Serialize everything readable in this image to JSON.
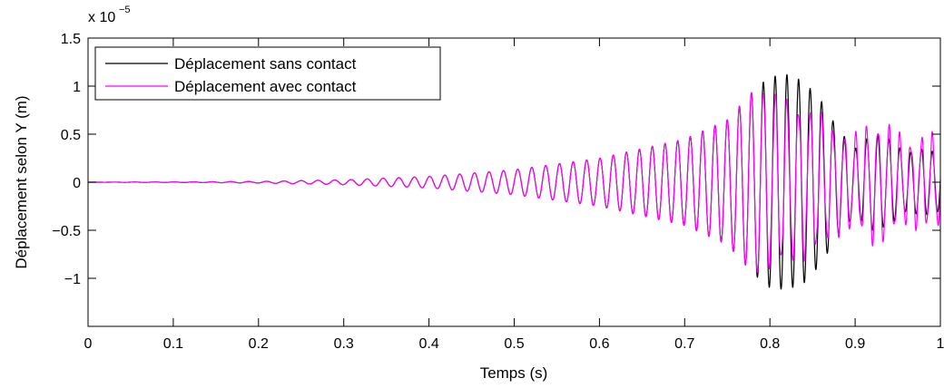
{
  "chart_data": {
    "type": "line",
    "title": "",
    "xlabel": "Temps (s)",
    "ylabel": "Déplacement selon Y (m)",
    "xlim": [
      0,
      1
    ],
    "ylim": [
      -1.5,
      1.5
    ],
    "y_multiplier_prefix": "x 10",
    "y_multiplier_exponent": "−5",
    "x_ticks": [
      "0",
      "0.1",
      "0.2",
      "0.3",
      "0.4",
      "0.5",
      "0.6",
      "0.7",
      "0.8",
      "0.9",
      "1"
    ],
    "y_ticks": [
      "1.5",
      "1",
      "0.5",
      "0",
      "−0.5",
      "−1"
    ],
    "y_tick_values": [
      1.5,
      1,
      0.5,
      0,
      -0.5,
      -1
    ],
    "grid": false,
    "legend_position": "top-left",
    "series": [
      {
        "name": "Déplacement sans contact",
        "color": "#000000",
        "x": [
          0,
          0.1,
          0.2,
          0.3,
          0.4,
          0.5,
          0.6,
          0.7,
          0.75,
          0.78,
          0.8,
          0.82,
          0.84,
          0.86,
          0.88,
          0.9,
          0.92,
          0.94,
          0.96,
          0.98,
          1.0
        ],
        "y_envelope": [
          0,
          0.002,
          0.008,
          0.025,
          0.06,
          0.13,
          0.25,
          0.45,
          0.65,
          0.95,
          1.1,
          1.12,
          1.05,
          0.85,
          0.55,
          0.35,
          0.5,
          0.45,
          0.3,
          0.35,
          0.3
        ]
      },
      {
        "name": "Déplacement avec contact",
        "color": "#ff00ff",
        "x": [
          0,
          0.1,
          0.2,
          0.3,
          0.4,
          0.5,
          0.6,
          0.7,
          0.75,
          0.78,
          0.8,
          0.82,
          0.84,
          0.86,
          0.88,
          0.9,
          0.92,
          0.94,
          0.96,
          0.98,
          1.0
        ],
        "y_envelope": [
          0,
          0.002,
          0.008,
          0.025,
          0.06,
          0.13,
          0.25,
          0.45,
          0.65,
          0.95,
          0.9,
          0.8,
          0.75,
          0.65,
          0.5,
          0.45,
          0.6,
          0.55,
          0.4,
          0.45,
          0.45
        ]
      }
    ],
    "oscillation_frequency_start_hz": 40,
    "oscillation_frequency_end_hz": 80
  }
}
